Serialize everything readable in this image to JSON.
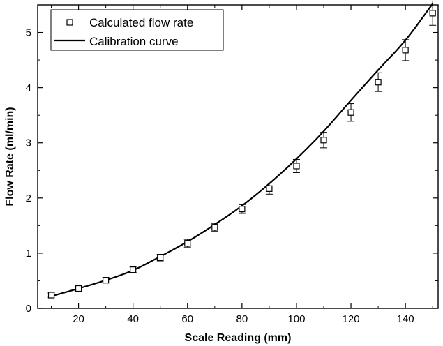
{
  "chart_data": {
    "type": "scatter",
    "title": "",
    "xlabel": "Scale Reading (mm)",
    "ylabel": "Flow Rate (ml/min)",
    "xlim": [
      5,
      152
    ],
    "ylim": [
      0,
      5.5
    ],
    "x_ticks": [
      20,
      40,
      60,
      80,
      100,
      120,
      140
    ],
    "x_tick_labels": [
      "20",
      "40",
      "60",
      "80",
      "100",
      "120",
      "140"
    ],
    "y_ticks": [
      0,
      1,
      2,
      3,
      4,
      5
    ],
    "y_tick_labels": [
      "0",
      "1",
      "2",
      "3",
      "4",
      "5"
    ],
    "grid": false,
    "legend_position": "top-left",
    "series": [
      {
        "name": "Calculated flow rate",
        "kind": "markers-with-error-bars",
        "marker": "open-square",
        "color": "#000000",
        "x": [
          10,
          20,
          30,
          40,
          50,
          60,
          70,
          80,
          90,
          100,
          110,
          120,
          130,
          140,
          150
        ],
        "y": [
          0.24,
          0.36,
          0.51,
          0.7,
          0.92,
          1.18,
          1.47,
          1.8,
          2.17,
          2.58,
          3.05,
          3.55,
          4.1,
          4.68,
          5.35
        ],
        "error": [
          0.04,
          0.04,
          0.05,
          0.05,
          0.06,
          0.07,
          0.07,
          0.08,
          0.1,
          0.12,
          0.14,
          0.16,
          0.17,
          0.19,
          0.22
        ]
      },
      {
        "name": "Calibration curve",
        "kind": "line",
        "color": "#000000",
        "x": [
          10,
          20,
          30,
          40,
          50,
          60,
          70,
          80,
          90,
          100,
          110,
          120,
          130,
          140,
          150
        ],
        "y": [
          0.22,
          0.36,
          0.51,
          0.69,
          0.94,
          1.21,
          1.52,
          1.86,
          2.26,
          2.71,
          3.21,
          3.77,
          4.32,
          4.86,
          5.52
        ]
      }
    ]
  }
}
